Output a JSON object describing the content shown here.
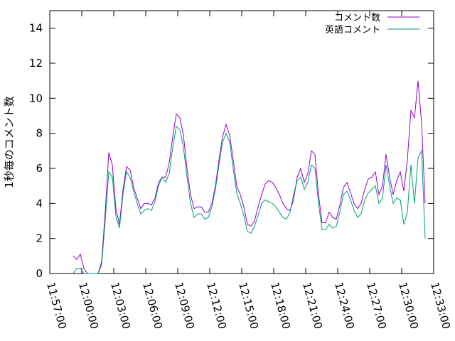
{
  "chart_data": {
    "type": "line",
    "y_label": "1秒毎のコメント数",
    "xlim": [
      "11:57:00",
      "12:33:00"
    ],
    "xticks": [
      "11:57:00",
      "12:00:00",
      "12:03:00",
      "12:06:00",
      "12:09:00",
      "12:12:00",
      "12:15:00",
      "12:18:00",
      "12:21:00",
      "12:24:00",
      "12:27:00",
      "12:30:00",
      "12:33:00"
    ],
    "ylim": [
      0,
      15
    ],
    "yticks": [
      0,
      2,
      4,
      6,
      8,
      10,
      12,
      14
    ],
    "grid": false,
    "legend": "top-right",
    "x": [
      "11:59:12",
      "11:59:32",
      "11:59:52",
      "12:00:12",
      "12:00:32",
      "12:00:52",
      "12:01:12",
      "12:01:32",
      "12:01:52",
      "12:02:12",
      "12:02:32",
      "12:02:52",
      "12:03:12",
      "12:03:32",
      "12:03:52",
      "12:04:12",
      "12:04:32",
      "12:04:52",
      "12:05:12",
      "12:05:32",
      "12:05:52",
      "12:06:12",
      "12:06:32",
      "12:06:52",
      "12:07:12",
      "12:07:32",
      "12:07:52",
      "12:08:12",
      "12:08:32",
      "12:08:52",
      "12:09:12",
      "12:09:32",
      "12:09:52",
      "12:10:12",
      "12:10:32",
      "12:10:52",
      "12:11:12",
      "12:11:32",
      "12:11:52",
      "12:12:12",
      "12:12:32",
      "12:12:52",
      "12:13:12",
      "12:13:32",
      "12:13:52",
      "12:14:12",
      "12:14:32",
      "12:14:52",
      "12:15:12",
      "12:15:32",
      "12:15:52",
      "12:16:12",
      "12:16:32",
      "12:16:52",
      "12:17:12",
      "12:17:32",
      "12:17:52",
      "12:18:12",
      "12:18:32",
      "12:18:52",
      "12:19:12",
      "12:19:32",
      "12:19:52",
      "12:20:12",
      "12:20:32",
      "12:20:52",
      "12:21:12",
      "12:21:32",
      "12:21:52",
      "12:22:12",
      "12:22:32",
      "12:22:52",
      "12:23:12",
      "12:23:32",
      "12:23:52",
      "12:24:12",
      "12:24:32",
      "12:24:52",
      "12:25:12",
      "12:25:32",
      "12:25:52",
      "12:26:12",
      "12:26:32",
      "12:26:52",
      "12:27:12",
      "12:27:32",
      "12:27:52",
      "12:28:12",
      "12:28:32",
      "12:28:52",
      "12:29:12",
      "12:29:32",
      "12:29:52",
      "12:30:12",
      "12:30:32",
      "12:30:52",
      "12:31:12",
      "12:31:32",
      "12:31:52",
      "12:32:12"
    ],
    "series": [
      {
        "name": "コメント数",
        "color": "#9400d3",
        "values": [
          1.0,
          0.8,
          1.1,
          0.3,
          0,
          0,
          0,
          0,
          0.7,
          3.5,
          6.9,
          6.2,
          3.7,
          2.8,
          4.8,
          6.1,
          5.9,
          4.9,
          4.3,
          3.7,
          4.0,
          4.0,
          3.9,
          4.3,
          5.2,
          5.5,
          5.5,
          6.3,
          7.8,
          9.1,
          8.9,
          7.9,
          6.0,
          4.5,
          3.7,
          3.8,
          3.8,
          3.5,
          3.5,
          4.0,
          5.0,
          6.5,
          7.8,
          8.5,
          7.9,
          6.5,
          5.0,
          4.5,
          3.8,
          2.8,
          2.7,
          3.0,
          3.8,
          4.5,
          5.1,
          5.3,
          5.2,
          4.9,
          4.5,
          4.0,
          3.7,
          3.6,
          4.2,
          5.5,
          6.0,
          5.2,
          5.7,
          7.0,
          6.8,
          4.5,
          2.9,
          2.9,
          3.5,
          3.2,
          3.1,
          3.9,
          4.9,
          5.2,
          4.6,
          4.0,
          3.7,
          4.0,
          4.8,
          5.4,
          5.5,
          5.8,
          4.5,
          5.0,
          6.8,
          5.5,
          4.5,
          5.3,
          5.8,
          4.7,
          6.5,
          9.3,
          8.9,
          11.0,
          8.6,
          4.0
        ]
      },
      {
        "name": "英語コメント",
        "color": "#009e73",
        "values": [
          0,
          0.3,
          0.3,
          0,
          0,
          0,
          0,
          0,
          0.5,
          3.0,
          5.8,
          5.5,
          3.3,
          2.6,
          4.5,
          5.8,
          5.5,
          4.7,
          4.0,
          3.4,
          3.6,
          3.7,
          3.6,
          4.1,
          5.0,
          5.5,
          5.2,
          5.7,
          7.2,
          8.4,
          8.2,
          7.2,
          5.5,
          4.0,
          3.2,
          3.4,
          3.4,
          3.1,
          3.2,
          3.8,
          4.8,
          6.2,
          7.5,
          8.0,
          7.5,
          6.0,
          4.6,
          4.0,
          3.3,
          2.4,
          2.3,
          2.7,
          3.3,
          4.0,
          4.2,
          4.1,
          4.0,
          3.8,
          3.5,
          3.2,
          3.1,
          3.5,
          4.5,
          5.3,
          5.5,
          4.8,
          5.2,
          6.2,
          6.0,
          4.0,
          2.5,
          2.5,
          2.8,
          2.6,
          2.7,
          3.5,
          4.5,
          4.7,
          4.2,
          3.6,
          3.2,
          3.4,
          4.2,
          4.6,
          4.8,
          5.0,
          4.0,
          4.3,
          6.2,
          5.0,
          4.0,
          4.3,
          4.2,
          2.8,
          3.5,
          6.2,
          4.0,
          6.6,
          7.0,
          2.0
        ]
      }
    ]
  }
}
